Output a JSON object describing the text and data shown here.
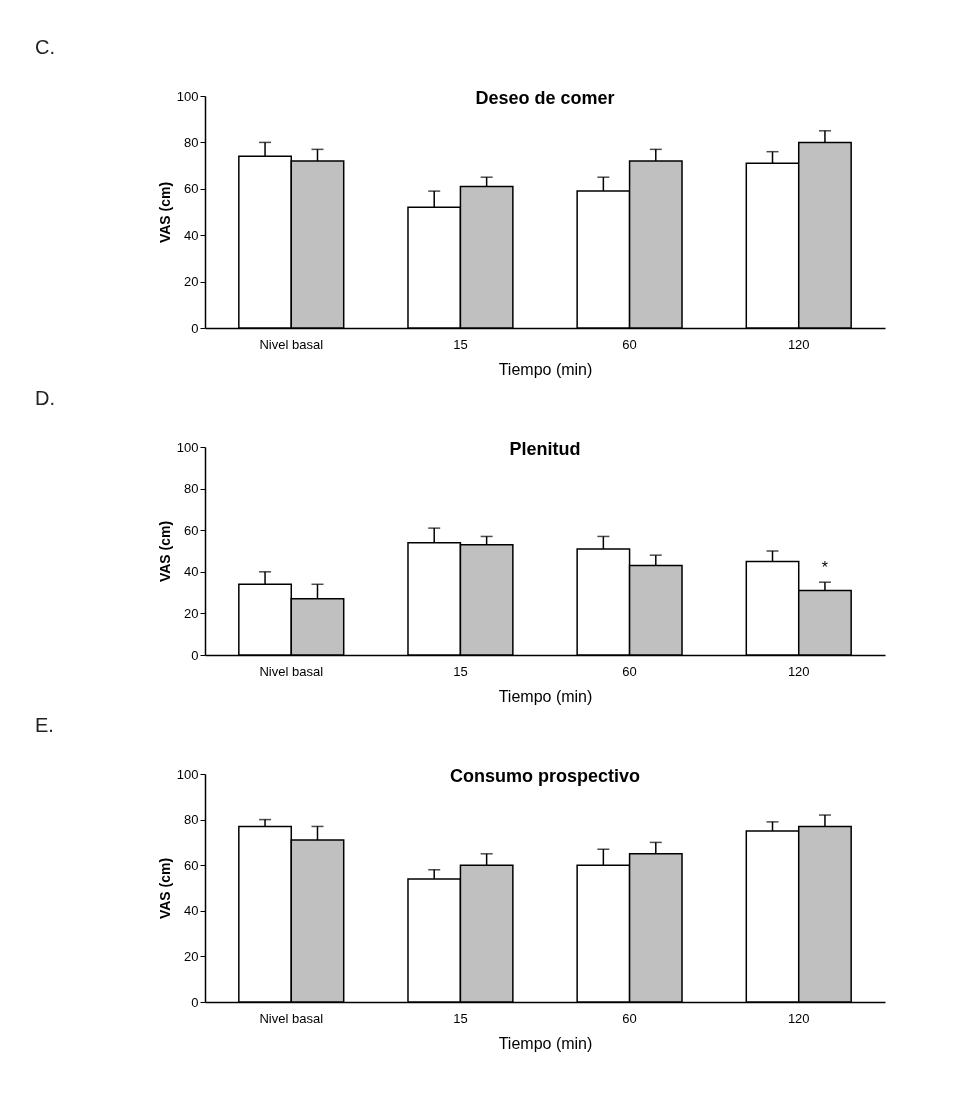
{
  "chart_data": [
    {
      "type": "bar",
      "title": "Deseo de comer",
      "xlabel": "Tiempo (min)",
      "ylabel": "VAS (cm)",
      "annotations": [
        "C."
      ],
      "categories": [
        "Nivel basal",
        "15",
        "60",
        "120"
      ],
      "ylim": [
        0,
        100
      ],
      "yticks": [
        0,
        20,
        40,
        60,
        80,
        100
      ],
      "series": [
        {
          "color": "#ffffff",
          "values": [
            74,
            52,
            59,
            71
          ],
          "errors": [
            [
              74,
              80
            ],
            [
              52,
              59
            ],
            [
              59,
              65
            ],
            [
              71,
              76
            ]
          ]
        },
        {
          "color": "#c0c0c0",
          "values": [
            72,
            61,
            72,
            80
          ],
          "errors": [
            [
              72,
              77
            ],
            [
              61,
              65
            ],
            [
              72,
              77
            ],
            [
              80,
              85
            ]
          ]
        }
      ]
    },
    {
      "type": "bar",
      "title": "Plenitud",
      "xlabel": "Tiempo (min)",
      "ylabel": "VAS (cm)",
      "annotations": [
        "D.",
        {
          "text": "*",
          "x": "120",
          "y": 38
        }
      ],
      "categories": [
        "Nivel basal",
        "15",
        "60",
        "120"
      ],
      "ylim": [
        0,
        100
      ],
      "yticks": [
        0,
        20,
        40,
        60,
        80,
        100
      ],
      "series": [
        {
          "color": "#ffffff",
          "values": [
            34,
            54,
            51,
            45
          ],
          "errors": [
            [
              34,
              40
            ],
            [
              54,
              61
            ],
            [
              51,
              57
            ],
            [
              45,
              50
            ]
          ]
        },
        {
          "color": "#c0c0c0",
          "values": [
            27,
            53,
            43,
            31
          ],
          "errors": [
            [
              27,
              34
            ],
            [
              53,
              57
            ],
            [
              43,
              48
            ],
            [
              31,
              35
            ]
          ]
        }
      ]
    },
    {
      "type": "bar",
      "title": "Consumo prospectivo",
      "xlabel": "Tiempo (min)",
      "ylabel": "VAS (cm)",
      "annotations": [
        "E."
      ],
      "categories": [
        "Nivel basal",
        "15",
        "60",
        "120"
      ],
      "ylim": [
        0,
        100
      ],
      "yticks": [
        0,
        20,
        40,
        60,
        80,
        100
      ],
      "series": [
        {
          "color": "#ffffff",
          "values": [
            77,
            54,
            60,
            75
          ],
          "errors": [
            [
              77,
              80
            ],
            [
              54,
              58
            ],
            [
              60,
              67
            ],
            [
              75,
              79
            ]
          ]
        },
        {
          "color": "#c0c0c0",
          "values": [
            71,
            60,
            65,
            77
          ],
          "errors": [
            [
              71,
              77
            ],
            [
              60,
              65
            ],
            [
              65,
              70
            ],
            [
              77,
              82
            ]
          ]
        }
      ]
    }
  ]
}
